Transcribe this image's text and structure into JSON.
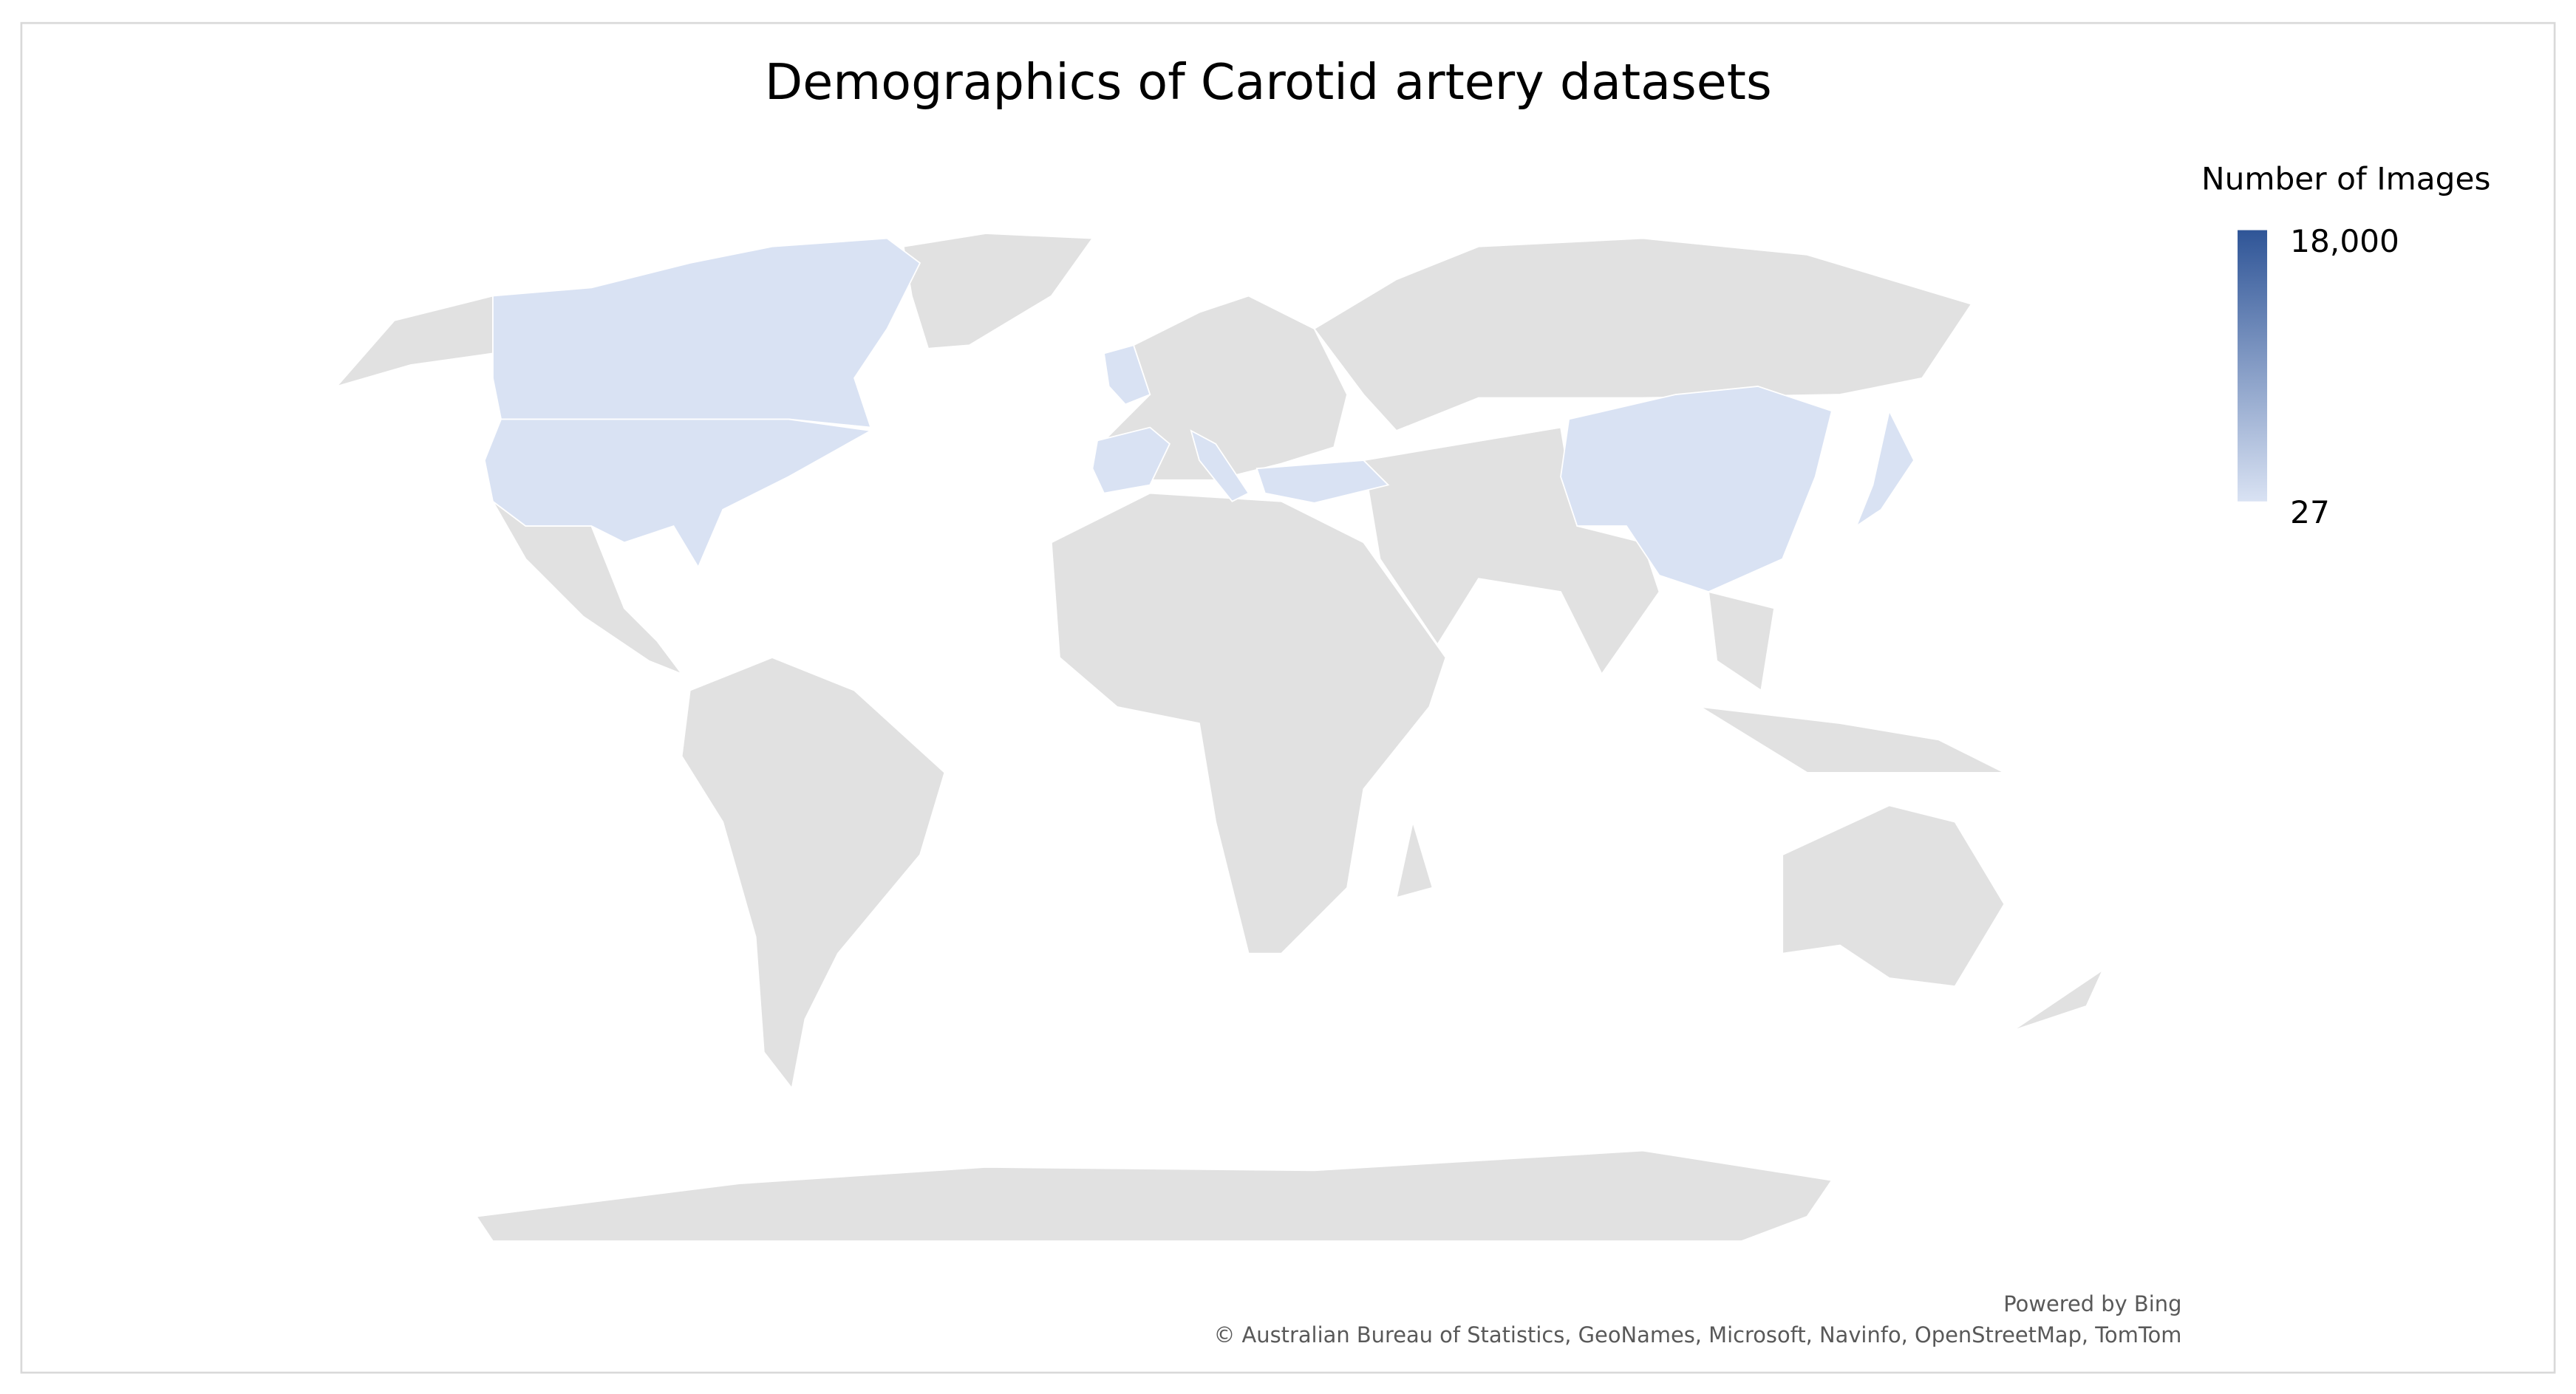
{
  "chart_data": {
    "type": "choropleth",
    "title": "Demographics of Carotid artery datasets",
    "legend_title": "Number of Images",
    "colors": [
      "#d9e2f3",
      "#2f5597"
    ],
    "colorbar_lim": [
      27,
      18000
    ],
    "colorbar_ticks": [
      {
        "value": 18000,
        "label": "18,000"
      },
      {
        "value": 27,
        "label": "27"
      }
    ]
  },
  "attribution": [
    "Powered by Bing",
    "© Australian Bureau of Statistics, GeoNames, Microsoft, Navinfo, OpenStreetMap, TomTom"
  ]
}
